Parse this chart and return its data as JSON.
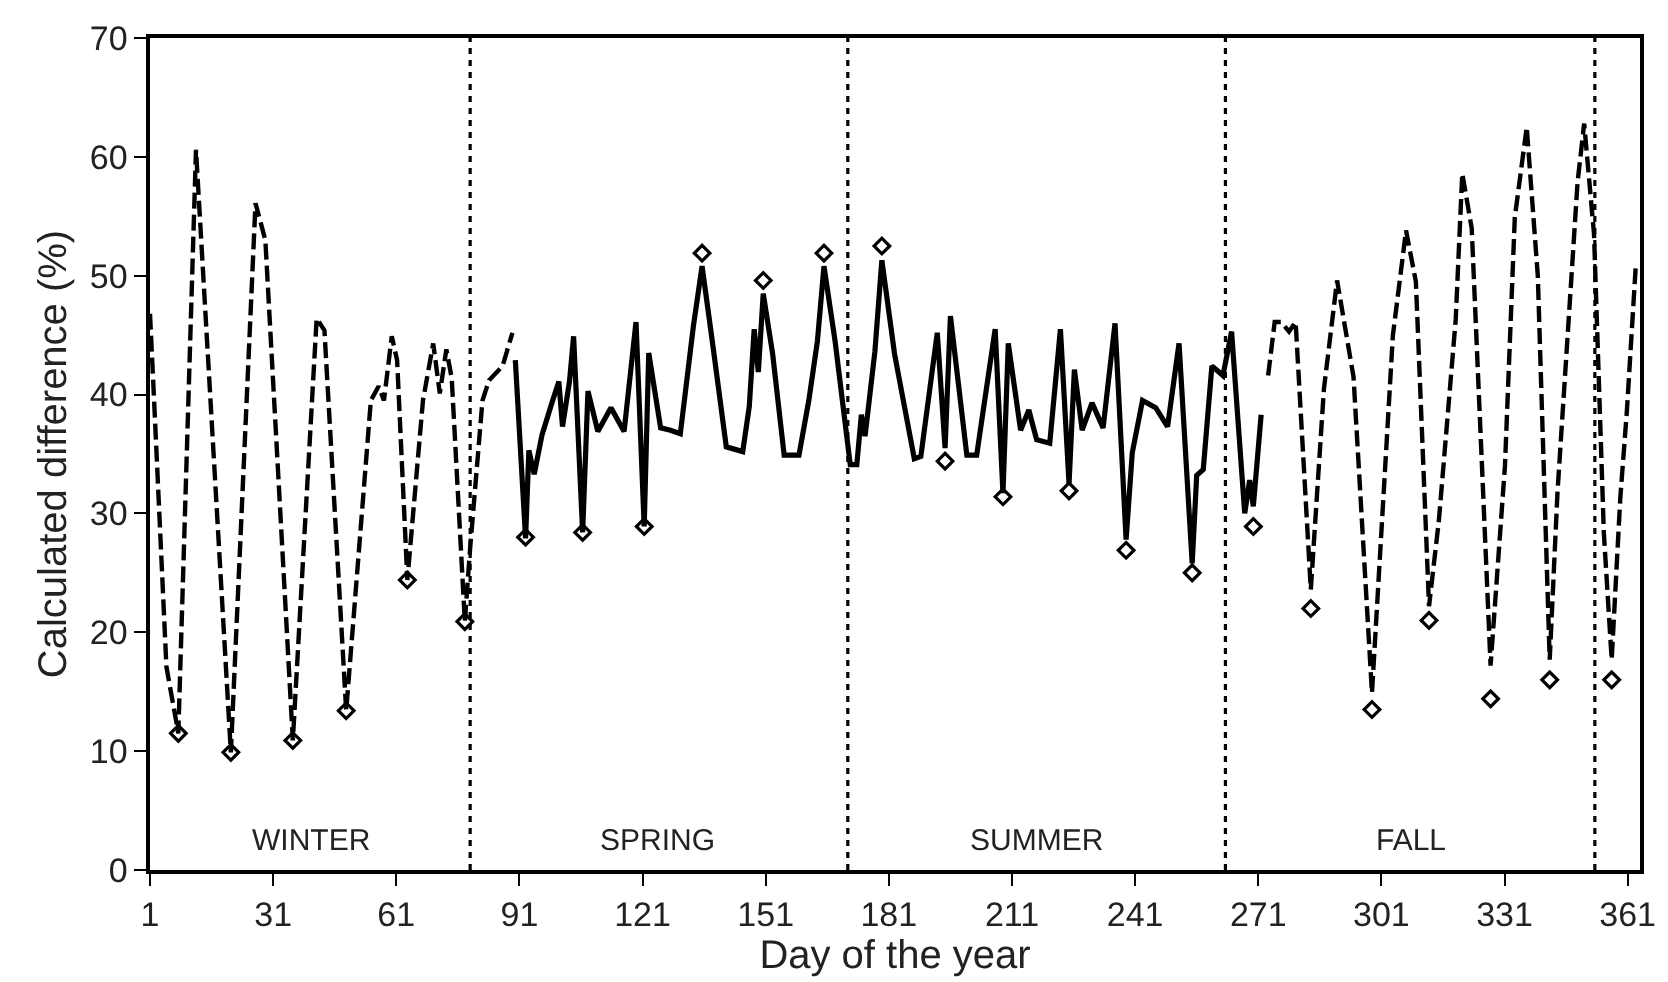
{
  "chart_data": {
    "type": "line",
    "xlabel": "Day of the year",
    "ylabel": "Calculated difference (%)",
    "xlim": [
      1,
      364
    ],
    "ylim": [
      0,
      70
    ],
    "xticks": [
      1,
      31,
      61,
      91,
      121,
      151,
      181,
      211,
      241,
      271,
      301,
      331,
      361
    ],
    "yticks": [
      0,
      10,
      20,
      30,
      40,
      50,
      60,
      70
    ],
    "series": [
      {
        "line_style": "dashed",
        "color": "#000000",
        "x": [
          1,
          2,
          5,
          7.9,
          12.2,
          20.7,
          26.7,
          29.1,
          35.8,
          41.6,
          43.5,
          48.8,
          54.8,
          56.7,
          58,
          59.9,
          61.2,
          63.7,
          67.5,
          70,
          71.6,
          73.2,
          74.5,
          77.7,
          79,
          82,
          83.6,
          86.9,
          89.3
        ],
        "values": [
          46.8,
          39.5,
          17.1,
          11.5,
          60.6,
          9.9,
          56.1,
          53.0,
          10.9,
          46.4,
          45.4,
          13.4,
          39.5,
          40.7,
          39.5,
          44.9,
          42.9,
          24.4,
          39.5,
          44.3,
          40.1,
          43.8,
          41.4,
          20.9,
          27.1,
          39.5,
          41.2,
          42.4,
          45.2
        ]
      },
      {
        "line_style": "solid",
        "color": "#000000",
        "x": [
          90,
          92.5,
          93.3,
          94.6,
          96.5,
          99,
          100.6,
          101.5,
          103.2,
          104.2,
          106.4,
          107.7,
          110.1,
          113.3,
          116.5,
          119.4,
          121.4,
          122.5,
          125.4,
          127.8,
          130.2,
          133.4,
          135.5,
          137.9,
          141.4,
          145.4,
          147,
          148.2,
          149.2,
          150.4,
          152.7,
          155.5,
          159.1,
          161.5,
          163.6,
          165.2,
          167.9,
          171.6,
          173.2,
          174.3,
          175.2,
          177.6,
          179.3,
          182.4,
          187.2,
          188.8,
          192.8,
          194.7,
          196,
          200,
          202.4,
          206.9,
          208.8,
          210.1,
          213.1,
          215.1,
          217,
          220.2,
          222.8,
          224.9,
          226.2,
          228.1,
          230.5,
          233.2,
          236.1,
          238.8,
          240.3,
          242.8,
          246,
          248.9,
          251.7,
          254.9,
          256,
          257.6,
          259.7,
          262.4,
          264.5,
          267.7,
          268.9,
          269.8,
          271.7
        ],
        "values": [
          42.9,
          27.9,
          35.3,
          33.3,
          36.6,
          39.4,
          41.1,
          37.3,
          41.1,
          44.9,
          28.4,
          40.3,
          36.9,
          38.9,
          36.9,
          46.1,
          28.9,
          43.5,
          37.2,
          37.0,
          36.7,
          45.8,
          50.8,
          44.7,
          35.6,
          35.2,
          39.0,
          45.5,
          41.9,
          48.5,
          43.4,
          34.9,
          34.9,
          39.5,
          44.5,
          50.8,
          44.5,
          34.1,
          34.1,
          38.3,
          36.5,
          43.6,
          51.3,
          43.4,
          34.6,
          34.8,
          45.2,
          35.5,
          46.6,
          34.9,
          34.9,
          45.5,
          31.7,
          44.3,
          37.0,
          38.7,
          36.2,
          35.9,
          45.5,
          32.5,
          42.1,
          37.0,
          39.3,
          37.2,
          46.0,
          27.8,
          35.1,
          39.5,
          38.9,
          37.3,
          44.3,
          25.8,
          33.2,
          33.7,
          42.4,
          41.6,
          45.3,
          30.0,
          32.8,
          30.6,
          38.3
        ]
      },
      {
        "line_style": "dashed",
        "color": "#000000",
        "x": [
          273.4,
          275,
          276.6,
          278.5,
          280.1,
          283.8,
          287,
          290.2,
          294.2,
          298.7,
          303.8,
          307,
          309.4,
          312.6,
          315,
          319.1,
          320.7,
          323,
          327.6,
          331.1,
          333.5,
          336.4,
          339.1,
          342,
          343.9,
          348.8,
          350.4,
          352.8,
          355.2,
          357.1,
          359.2,
          360.8,
          363
        ],
        "values": [
          41.6,
          46.1,
          46.1,
          45.3,
          46.1,
          23.6,
          40.5,
          49.6,
          41.5,
          14.9,
          45.0,
          53.8,
          49.5,
          22.2,
          29.4,
          46.3,
          58.6,
          54.0,
          17.2,
          34.0,
          54.9,
          62.5,
          50.0,
          17.7,
          31.8,
          57.9,
          62.8,
          53.5,
          28.3,
          17.7,
          31.3,
          38.6,
          51.0
        ]
      },
      {
        "type": "scatter",
        "marker": "diamond",
        "color": "#000000",
        "x": [
          7.9,
          20.7,
          35.8,
          48.8,
          63.7,
          77.7,
          92.5,
          106.4,
          121.4,
          135.5,
          150.4,
          165.2,
          179.3,
          194.7,
          208.8,
          224.9,
          238.8,
          254.9,
          269.8,
          283.8,
          298.7,
          312.6,
          327.6,
          342,
          357.1
        ],
        "values": [
          11.5,
          9.9,
          10.9,
          13.4,
          24.4,
          20.9,
          28.0,
          28.4,
          28.9,
          51.9,
          49.6,
          51.9,
          52.5,
          34.4,
          31.4,
          31.9,
          26.9,
          25.0,
          28.9,
          22.0,
          13.5,
          21.0,
          14.4,
          16.0,
          16.0
        ]
      }
    ],
    "ref_lines": [
      {
        "axis": "x",
        "value": 79,
        "color": "#000000",
        "line_style": "dotted"
      },
      {
        "axis": "x",
        "value": 171,
        "color": "#000000",
        "line_style": "dotted"
      },
      {
        "axis": "x",
        "value": 263,
        "color": "#000000",
        "line_style": "dotted"
      },
      {
        "axis": "x",
        "value": 353,
        "color": "#000000",
        "line_style": "dotted"
      }
    ],
    "annotations": [
      "WINTER",
      "SPRING",
      "SUMMER",
      "FALL"
    ]
  }
}
